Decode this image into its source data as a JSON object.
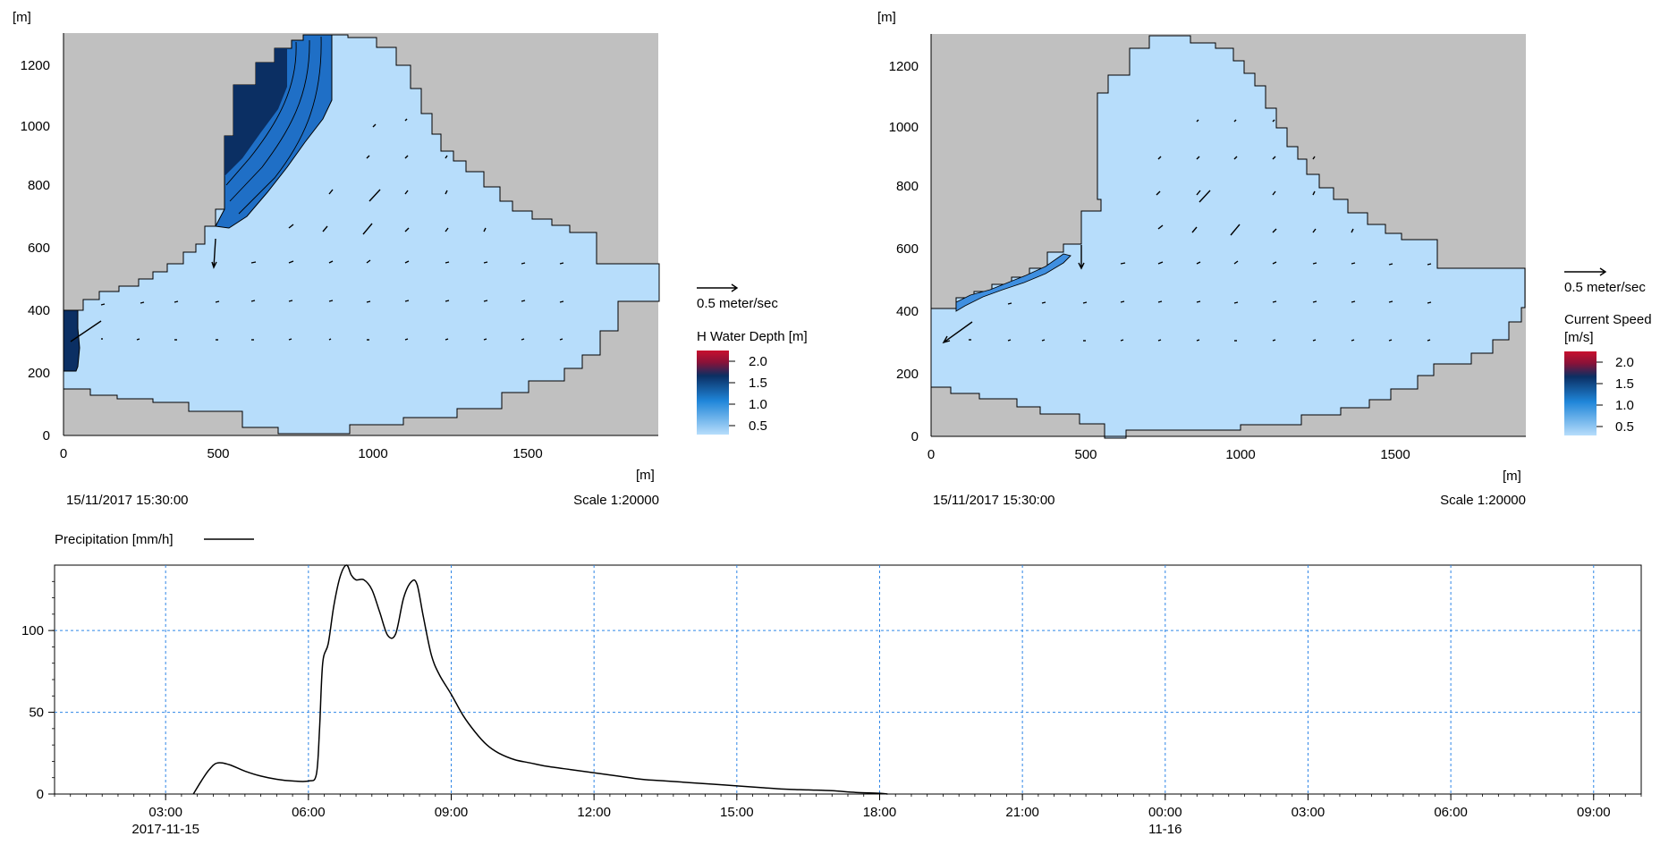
{
  "colors": {
    "land": "#c0c0c0",
    "water_light": "#b7ddfb",
    "water_mid": "#1f86d9",
    "water_deep": "#0b2f63",
    "scale_top": "#c8102e",
    "grid": "#2f86e6",
    "line": "#000000"
  },
  "maps": [
    {
      "id": "water-depth",
      "y_unit_label": "[m]",
      "x_unit_label": "[m]",
      "x_ticks": [
        "0",
        "500",
        "1000",
        "1500"
      ],
      "y_ticks": [
        "0",
        "200",
        "400",
        "600",
        "800",
        "1000",
        "1200"
      ],
      "timestamp": "15/11/2017 15:30:00",
      "scale": "Scale 1:20000",
      "vector_label": "0.5 meter/sec",
      "legend_title": "H Water Depth [m]",
      "legend_subtitle": "",
      "legend_ticks": [
        "2.0",
        "1.5",
        "1.0",
        "0.5"
      ]
    },
    {
      "id": "current-speed",
      "y_unit_label": "[m]",
      "x_unit_label": "[m]",
      "x_ticks": [
        "0",
        "500",
        "1000",
        "1500"
      ],
      "y_ticks": [
        "0",
        "200",
        "400",
        "600",
        "800",
        "1000",
        "1200"
      ],
      "timestamp": "15/11/2017 15:30:00",
      "scale": "Scale 1:20000",
      "vector_label": "0.5 meter/sec",
      "legend_title": "Current Speed",
      "legend_subtitle": "[m/s]",
      "legend_ticks": [
        "2.0",
        "1.5",
        "1.0",
        "0.5"
      ]
    }
  ],
  "chart_data": {
    "type": "line",
    "legend": "Precipitation [mm/h]",
    "x_ticks": [
      "03:00",
      "06:00",
      "09:00",
      "12:00",
      "15:00",
      "18:00",
      "21:00",
      "00:00",
      "03:00",
      "06:00",
      "09:00"
    ],
    "date_labels": [
      {
        "at": "03:00",
        "label": "2017-11-15"
      },
      {
        "at": "00:00",
        "label": "11-16"
      }
    ],
    "y_ticks": [
      "0",
      "50",
      "100"
    ],
    "ylim": [
      0,
      140
    ],
    "xlim": [
      "2017-11-15 00:40",
      "2017-11-16 10:00"
    ],
    "grid": true,
    "series": [
      {
        "name": "Precipitation [mm/h]",
        "x": [
          "2017-11-15 03:35",
          "2017-11-15 03:45",
          "2017-11-15 03:55",
          "2017-11-15 04:05",
          "2017-11-15 04:20",
          "2017-11-15 04:40",
          "2017-11-15 05:00",
          "2017-11-15 05:20",
          "2017-11-15 05:40",
          "2017-11-15 06:00",
          "2017-11-15 06:10",
          "2017-11-15 06:14",
          "2017-11-15 06:18",
          "2017-11-15 06:25",
          "2017-11-15 06:32",
          "2017-11-15 06:40",
          "2017-11-15 06:48",
          "2017-11-15 06:54",
          "2017-11-15 07:00",
          "2017-11-15 07:10",
          "2017-11-15 07:20",
          "2017-11-15 07:30",
          "2017-11-15 07:40",
          "2017-11-15 07:50",
          "2017-11-15 08:00",
          "2017-11-15 08:10",
          "2017-11-15 08:17",
          "2017-11-15 08:25",
          "2017-11-15 08:35",
          "2017-11-15 08:45",
          "2017-11-15 09:00",
          "2017-11-15 09:15",
          "2017-11-15 09:30",
          "2017-11-15 09:45",
          "2017-11-15 10:00",
          "2017-11-15 10:20",
          "2017-11-15 10:40",
          "2017-11-15 11:00",
          "2017-11-15 11:30",
          "2017-11-15 12:00",
          "2017-11-15 12:30",
          "2017-11-15 13:00",
          "2017-11-15 13:30",
          "2017-11-15 14:00",
          "2017-11-15 14:30",
          "2017-11-15 15:00",
          "2017-11-15 15:30",
          "2017-11-15 16:00",
          "2017-11-15 16:30",
          "2017-11-15 17:00",
          "2017-11-15 17:30",
          "2017-11-15 18:00",
          "2017-11-15 18:10"
        ],
        "y": [
          0,
          8,
          15,
          19,
          18,
          14,
          11,
          9,
          8,
          8,
          12,
          40,
          80,
          92,
          115,
          133,
          140,
          134,
          131,
          131,
          125,
          111,
          97,
          98,
          120,
          130,
          128,
          108,
          85,
          73,
          61,
          48,
          38,
          30,
          25,
          21,
          19,
          17,
          15,
          13,
          11,
          9,
          8,
          7,
          6,
          5,
          4,
          3,
          2.5,
          2,
          1,
          0.5,
          0
        ]
      }
    ]
  }
}
